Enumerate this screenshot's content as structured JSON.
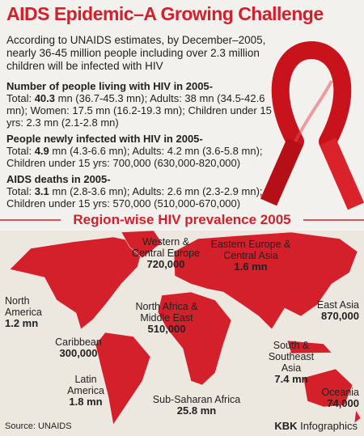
{
  "header": {
    "title": "AIDS Epidemic–A Growing Challenge",
    "intro": "According to UNAIDS estimates, by December–2005, nearly 36-45 million people including over 2.3 million children will be infected with HIV"
  },
  "stats": [
    {
      "heading": "Number of people living with HIV in 2005-",
      "total_label": "Total:",
      "total_value": "40.3",
      "rest": "mn (36.7-45.3 mn);  Adults: 38 mn (34.5-42.6 mn);  Women: 17.5 mn (16.2-19.3 mn);  Children under 15 yrs: 2.3 mn (2.1-2.8 mn)"
    },
    {
      "heading": "People newly infected with HIV in 2005-",
      "total_label": "Total:",
      "total_value": "4.9",
      "rest": "mn (4.3-6.6 mn);  Adults: 4.2 mn (3.6-5.8 mn);  Children under 15 yrs: 700,000 (630,000-820,000)"
    },
    {
      "heading": "AIDS deaths in 2005-",
      "total_label": "Total:",
      "total_value": "3.1",
      "rest": "mn (2.8-3.6 mn);  Adults: 2.6 mn (2.3-2.9 mn);  Children under 15 yrs: 570,000 (510,000-670,000)"
    }
  ],
  "map": {
    "title": "Region-wise HIV prevalence 2005",
    "regions": [
      {
        "name": "Western & Central Europe",
        "value": "720,000"
      },
      {
        "name": "Eastern Europe & Central Asia",
        "value": "1.6 mn"
      },
      {
        "name": "North America",
        "value": "1.2 mn"
      },
      {
        "name": "North Africa & Middle East",
        "value": "510,000"
      },
      {
        "name": "East Asia",
        "value": "870,000"
      },
      {
        "name": "Caribbean",
        "value": "300,000"
      },
      {
        "name": "South & Southeast Asia",
        "value": "7.4 mn"
      },
      {
        "name": "Oceania",
        "value": "74,000"
      },
      {
        "name": "Latin America",
        "value": "1.8 mn"
      },
      {
        "name": "Sub-Saharan Africa",
        "value": "25.8 mn"
      }
    ]
  },
  "footer": {
    "source": "Source: UNAIDS",
    "credit_brand": "KBK",
    "credit_rest": "Infographics"
  }
}
